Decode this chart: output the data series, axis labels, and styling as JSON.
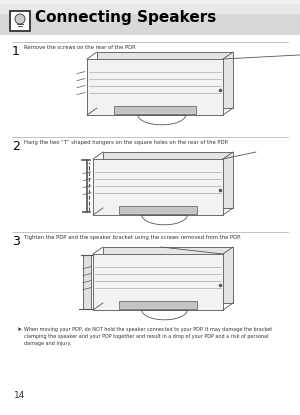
{
  "bg_color": "#ffffff",
  "header_top_color": "#e8e8e8",
  "header_mid_color": "#d8d8d8",
  "title": "Connecting Speakers",
  "title_fontsize": 11,
  "title_color": "#000000",
  "page_number": "14",
  "step1_num": "1",
  "step1_text": "Remove the screws on the rear of the PDP.",
  "step2_num": "2",
  "step2_text": "Hang the two “T” shaped hangers on the square holes on the rear of the PDP.",
  "step3_num": "3",
  "step3_text": "Tighten the PDP and the speaker bracket using the screws removed from the PDP.",
  "note_text": "When moving your PDP, do NOT hold the speaker connected to your PDP. It may damage the bracket\nclamping the speaker and your PDP together and result in a drop of your PDP and a risk of personal\ndamage and injury.",
  "line_color": "#aaaaaa",
  "text_color": "#333333",
  "draw_color": "#555555",
  "step_num_fontsize": 9,
  "step_text_fontsize": 3.8,
  "note_fontsize": 3.5,
  "icon_border_color": "#222222"
}
